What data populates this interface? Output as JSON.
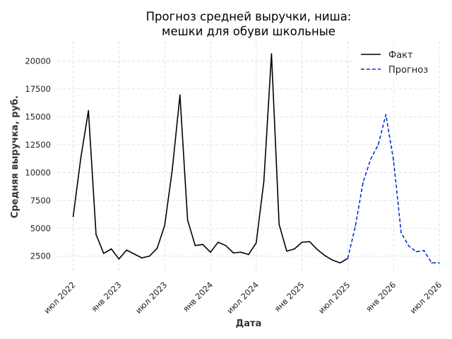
{
  "chart_data": {
    "type": "line",
    "title_lines": [
      "Прогноз средней выручки, ниша:",
      "мешки для обуви школьные"
    ],
    "xlabel": "Дата",
    "ylabel": "Средняя выручка, руб.",
    "xlim": [
      "2022-05",
      "2026-07"
    ],
    "ylim": [
      900,
      21800
    ],
    "x_ticks": [
      {
        "date": "2022-07",
        "label": "июл 2022"
      },
      {
        "date": "2023-01",
        "label": "янв 2023"
      },
      {
        "date": "2023-07",
        "label": "июл 2023"
      },
      {
        "date": "2024-01",
        "label": "янв 2024"
      },
      {
        "date": "2024-07",
        "label": "июл 2024"
      },
      {
        "date": "2025-01",
        "label": "янв 2025"
      },
      {
        "date": "2025-07",
        "label": "июл 2025"
      },
      {
        "date": "2026-01",
        "label": "янв 2026"
      },
      {
        "date": "2026-07",
        "label": "июл 2026"
      }
    ],
    "y_ticks": [
      {
        "value": 2500,
        "label": "2500"
      },
      {
        "value": 5000,
        "label": "5000"
      },
      {
        "value": 7500,
        "label": "7500"
      },
      {
        "value": 10000,
        "label": "10000"
      },
      {
        "value": 12500,
        "label": "12500"
      },
      {
        "value": 15000,
        "label": "15000"
      },
      {
        "value": 17500,
        "label": "17500"
      },
      {
        "value": 20000,
        "label": "20000"
      }
    ],
    "grid": true,
    "legend_position": "top-right",
    "series": [
      {
        "name": "Факт",
        "color": "#000000",
        "style": "solid",
        "points": [
          {
            "x": "2022-07",
            "y": 6050
          },
          {
            "x": "2022-08",
            "y": 11300
          },
          {
            "x": "2022-09",
            "y": 15550
          },
          {
            "x": "2022-10",
            "y": 4450
          },
          {
            "x": "2022-11",
            "y": 2750
          },
          {
            "x": "2022-12",
            "y": 3150
          },
          {
            "x": "2023-01",
            "y": 2250
          },
          {
            "x": "2023-02",
            "y": 3050
          },
          {
            "x": "2023-03",
            "y": 2700
          },
          {
            "x": "2023-04",
            "y": 2350
          },
          {
            "x": "2023-05",
            "y": 2500
          },
          {
            "x": "2023-06",
            "y": 3200
          },
          {
            "x": "2023-07",
            "y": 5250
          },
          {
            "x": "2023-08",
            "y": 10300
          },
          {
            "x": "2023-09",
            "y": 16950
          },
          {
            "x": "2023-10",
            "y": 5750
          },
          {
            "x": "2023-11",
            "y": 3450
          },
          {
            "x": "2023-12",
            "y": 3550
          },
          {
            "x": "2024-01",
            "y": 2850
          },
          {
            "x": "2024-02",
            "y": 3750
          },
          {
            "x": "2024-03",
            "y": 3450
          },
          {
            "x": "2024-04",
            "y": 2800
          },
          {
            "x": "2024-05",
            "y": 2850
          },
          {
            "x": "2024-06",
            "y": 2650
          },
          {
            "x": "2024-07",
            "y": 3700
          },
          {
            "x": "2024-08",
            "y": 9200
          },
          {
            "x": "2024-09",
            "y": 20650
          },
          {
            "x": "2024-10",
            "y": 5350
          },
          {
            "x": "2024-11",
            "y": 2950
          },
          {
            "x": "2024-12",
            "y": 3150
          },
          {
            "x": "2025-01",
            "y": 3750
          },
          {
            "x": "2025-02",
            "y": 3800
          },
          {
            "x": "2025-03",
            "y": 3100
          },
          {
            "x": "2025-04",
            "y": 2550
          },
          {
            "x": "2025-05",
            "y": 2150
          },
          {
            "x": "2025-06",
            "y": 1900
          },
          {
            "x": "2025-07",
            "y": 2300
          }
        ]
      },
      {
        "name": "Прогноз",
        "color": "#0033cc",
        "style": "dashed",
        "points": [
          {
            "x": "2025-07",
            "y": 2300
          },
          {
            "x": "2025-08",
            "y": 5200
          },
          {
            "x": "2025-09",
            "y": 9100
          },
          {
            "x": "2025-10",
            "y": 11200
          },
          {
            "x": "2025-11",
            "y": 12500
          },
          {
            "x": "2025-12",
            "y": 15200
          },
          {
            "x": "2026-01",
            "y": 11100
          },
          {
            "x": "2026-02",
            "y": 4600
          },
          {
            "x": "2026-03",
            "y": 3400
          },
          {
            "x": "2026-04",
            "y": 2900
          },
          {
            "x": "2026-05",
            "y": 3000
          },
          {
            "x": "2026-06",
            "y": 1900
          },
          {
            "x": "2026-07",
            "y": 1900
          }
        ]
      }
    ]
  }
}
